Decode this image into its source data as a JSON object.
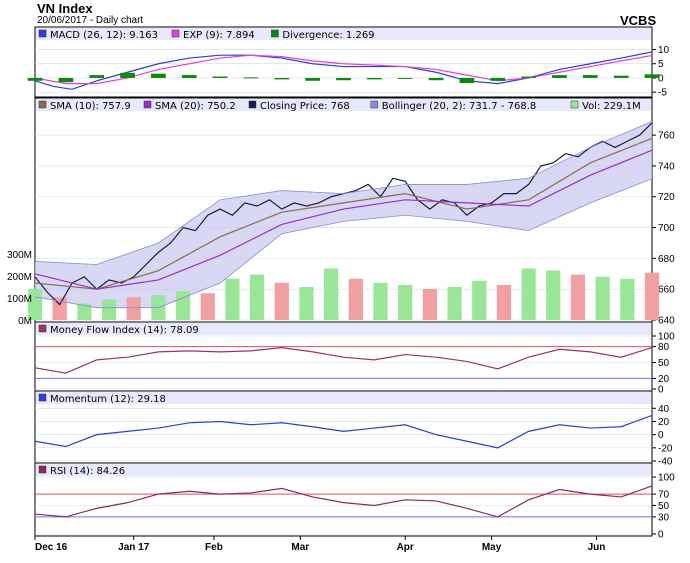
{
  "header": {
    "title": "VN Index",
    "subtitle": "20/06/2017 - Daily chart",
    "brand": "VCBS"
  },
  "colors": {
    "panel_bg": "#ffffff",
    "legend_bg": "#e8e8ff",
    "grid": "#d8d8e8",
    "sma10": "#8b6a4f",
    "sma20": "#9a2bd4",
    "close": "#1a1a4a",
    "band_fill": "#c8c8f0",
    "band_line": "#8a8ad8",
    "vol_up": "#99e699",
    "vol_down": "#f0a0a0",
    "macd": "#2b3fd4",
    "signal": "#e040e0",
    "divergence": "#0a8a0a",
    "mfi": "#a0306a",
    "momentum": "#2b3fd4",
    "rsi": "#8a2a5a",
    "ref_red": "#e05050",
    "ref_blue": "#7070f0"
  },
  "dates": [
    "Dec 16",
    "Jan 17",
    "Feb",
    "Mar",
    "Apr",
    "May",
    "Jun"
  ],
  "chart_data": [
    {
      "type": "line",
      "id": "macd",
      "legend": [
        "MACD (26, 12): 9.163",
        "EXP (9): 7.894",
        "Divergence: 1.269"
      ],
      "ylim": [
        -6,
        13
      ],
      "yticks": [
        10,
        5,
        0,
        -5
      ],
      "series": [
        {
          "name": "MACD (26, 12)",
          "x": [
            0,
            3,
            6,
            10,
            15,
            20,
            25,
            30,
            35,
            40,
            45,
            50,
            55,
            60,
            65,
            70,
            75,
            80,
            85,
            90,
            95,
            100
          ],
          "values": [
            -1,
            -3,
            -4,
            -1,
            2,
            5,
            7,
            8,
            8,
            7,
            5,
            4,
            4,
            4,
            2,
            -1,
            -2,
            0,
            3,
            5,
            7,
            9.163
          ]
        },
        {
          "name": "EXP (9)",
          "x": [
            0,
            5,
            10,
            15,
            20,
            25,
            30,
            35,
            40,
            45,
            50,
            55,
            60,
            65,
            70,
            75,
            80,
            85,
            90,
            95,
            100
          ],
          "values": [
            0,
            -2,
            -2,
            0,
            3,
            5,
            7,
            8,
            7.5,
            6,
            5,
            4.5,
            4,
            3,
            1,
            -1,
            0,
            2,
            4,
            6,
            7.894
          ]
        },
        {
          "name": "Divergence",
          "type": "bar",
          "x": [
            0,
            5,
            10,
            15,
            20,
            25,
            30,
            35,
            40,
            45,
            50,
            55,
            60,
            65,
            70,
            75,
            80,
            85,
            90,
            95,
            100
          ],
          "values": [
            -1,
            -1.5,
            1,
            1.8,
            1.5,
            1,
            0.5,
            0.2,
            -0.5,
            -1,
            -0.8,
            -0.5,
            0,
            -0.8,
            -1.8,
            -1,
            0.5,
            1,
            1,
            0.8,
            1.269
          ]
        }
      ]
    },
    {
      "type": "line",
      "id": "price",
      "legend": [
        "SMA (10): 757.9",
        "SMA (20): 750.2",
        "Closing Price: 768",
        "Bollinger (20, 2): 731.7 - 768.8",
        "Vol: 229.1M"
      ],
      "ylim": [
        640,
        775
      ],
      "yticks": [
        760,
        740,
        720,
        700,
        680,
        660,
        640
      ],
      "vol_ticks": [
        "300M",
        "200M",
        "100M",
        "0M"
      ],
      "vol_ylim": [
        0,
        320
      ],
      "series": [
        {
          "name": "Closing Price",
          "x": [
            0,
            2,
            4,
            6,
            8,
            10,
            12,
            14,
            16,
            18,
            20,
            22,
            24,
            26,
            28,
            30,
            32,
            34,
            36,
            38,
            40,
            42,
            44,
            46,
            48,
            50,
            52,
            54,
            56,
            58,
            60,
            62,
            64,
            66,
            68,
            70,
            72,
            74,
            76,
            78,
            80,
            82,
            84,
            86,
            88,
            90,
            92,
            94,
            96,
            98,
            100
          ],
          "values": [
            668,
            658,
            650,
            664,
            668,
            660,
            666,
            664,
            668,
            676,
            684,
            690,
            700,
            698,
            708,
            712,
            708,
            716,
            714,
            718,
            712,
            716,
            714,
            716,
            720,
            722,
            724,
            728,
            720,
            732,
            730,
            718,
            712,
            718,
            716,
            708,
            714,
            716,
            722,
            722,
            728,
            740,
            742,
            748,
            746,
            752,
            756,
            752,
            756,
            760,
            768
          ]
        },
        {
          "name": "SMA (10)",
          "x": [
            0,
            10,
            20,
            30,
            40,
            50,
            60,
            70,
            80,
            90,
            100
          ],
          "values": [
            664,
            660,
            672,
            694,
            710,
            716,
            722,
            712,
            718,
            742,
            757.9
          ]
        },
        {
          "name": "SMA (20)",
          "x": [
            0,
            10,
            20,
            30,
            40,
            50,
            60,
            70,
            80,
            90,
            100
          ],
          "values": [
            670,
            660,
            666,
            682,
            702,
            712,
            718,
            716,
            714,
            734,
            750.2
          ]
        },
        {
          "name": "Bollinger upper",
          "x": [
            0,
            10,
            20,
            30,
            40,
            50,
            60,
            70,
            80,
            90,
            100
          ],
          "values": [
            678,
            676,
            690,
            718,
            724,
            722,
            728,
            728,
            732,
            752,
            768.8
          ]
        },
        {
          "name": "Bollinger lower",
          "x": [
            0,
            10,
            20,
            30,
            40,
            50,
            60,
            70,
            80,
            90,
            100
          ],
          "values": [
            655,
            648,
            648,
            664,
            696,
            704,
            708,
            704,
            698,
            716,
            731.7
          ]
        },
        {
          "name": "Vol",
          "type": "bar",
          "x": [
            0,
            4,
            8,
            12,
            16,
            20,
            24,
            28,
            32,
            36,
            40,
            44,
            48,
            52,
            56,
            60,
            64,
            68,
            72,
            76,
            80,
            84,
            88,
            92,
            96,
            100
          ],
          "values": [
            150,
            110,
            80,
            100,
            110,
            120,
            140,
            130,
            200,
            220,
            180,
            160,
            250,
            200,
            180,
            170,
            150,
            160,
            190,
            170,
            250,
            240,
            220,
            210,
            200,
            229.1
          ]
        }
      ]
    },
    {
      "type": "line",
      "id": "mfi",
      "legend": [
        "Money Flow Index (14): 78.09"
      ],
      "ylim": [
        0,
        100
      ],
      "yticks": [
        100,
        80,
        50,
        20,
        0
      ],
      "ref_lines": [
        80,
        20
      ],
      "series": [
        {
          "name": "Money Flow Index (14)",
          "x": [
            0,
            5,
            10,
            15,
            20,
            25,
            30,
            35,
            40,
            45,
            50,
            55,
            60,
            65,
            70,
            75,
            80,
            85,
            90,
            95,
            100
          ],
          "values": [
            40,
            30,
            55,
            60,
            70,
            72,
            70,
            72,
            78,
            70,
            60,
            55,
            65,
            60,
            52,
            38,
            60,
            75,
            70,
            60,
            78.09
          ]
        }
      ]
    },
    {
      "type": "line",
      "id": "momentum",
      "legend": [
        "Momentum (12): 29.18"
      ],
      "ylim": [
        -40,
        45
      ],
      "yticks": [
        40,
        20,
        0,
        -20,
        -40
      ],
      "series": [
        {
          "name": "Momentum (12)",
          "x": [
            0,
            5,
            10,
            15,
            20,
            25,
            30,
            35,
            40,
            45,
            50,
            55,
            60,
            65,
            70,
            75,
            80,
            85,
            90,
            95,
            100
          ],
          "values": [
            -10,
            -18,
            0,
            5,
            10,
            18,
            20,
            15,
            18,
            12,
            5,
            10,
            15,
            0,
            -10,
            -20,
            5,
            15,
            10,
            12,
            29.18
          ]
        }
      ]
    },
    {
      "type": "line",
      "id": "rsi",
      "legend": [
        "RSI (14): 84.26"
      ],
      "ylim": [
        0,
        100
      ],
      "yticks": [
        100,
        70,
        50,
        30,
        0
      ],
      "ref_lines": [
        70,
        30
      ],
      "series": [
        {
          "name": "RSI (14)",
          "x": [
            0,
            5,
            10,
            15,
            20,
            25,
            30,
            35,
            40,
            45,
            50,
            55,
            60,
            65,
            70,
            75,
            80,
            85,
            90,
            95,
            100
          ],
          "values": [
            35,
            30,
            45,
            55,
            70,
            75,
            70,
            72,
            80,
            65,
            55,
            50,
            60,
            58,
            45,
            30,
            60,
            78,
            70,
            65,
            84.26
          ]
        }
      ]
    }
  ]
}
